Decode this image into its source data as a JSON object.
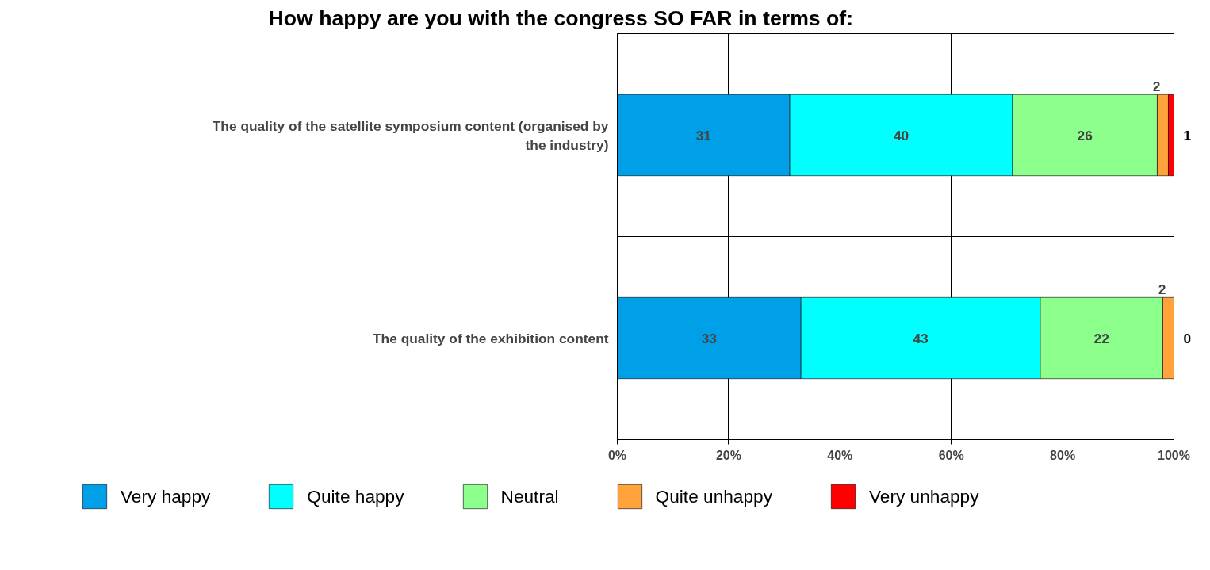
{
  "chart_data": {
    "type": "bar",
    "orientation": "horizontal",
    "stacked": true,
    "title": "How happy are you with the congress SO FAR in terms of:",
    "categories": [
      "The quality of the satellite symposium content (organised by the industry)",
      "The quality of the exhibition content"
    ],
    "series": [
      {
        "name": "Very happy",
        "color": "#00a0e8",
        "values": [
          31,
          33
        ]
      },
      {
        "name": "Quite happy",
        "color": "#00ffff",
        "values": [
          40,
          43
        ]
      },
      {
        "name": "Neutral",
        "color": "#8cff8c",
        "values": [
          26,
          22
        ]
      },
      {
        "name": "Quite unhappy",
        "color": "#ffa33a",
        "values": [
          2,
          2
        ]
      },
      {
        "name": "Very unhappy",
        "color": "#ff0000",
        "values": [
          1,
          0
        ]
      }
    ],
    "xlim": [
      0,
      100
    ],
    "xticks": [
      {
        "value": 0,
        "label": "0%"
      },
      {
        "value": 20,
        "label": "20%"
      },
      {
        "value": 40,
        "label": "40%"
      },
      {
        "value": 60,
        "label": "60%"
      },
      {
        "value": 80,
        "label": "80%"
      },
      {
        "value": 100,
        "label": "100%"
      }
    ],
    "grid": true,
    "legend": "bottom",
    "data_labels": true
  }
}
